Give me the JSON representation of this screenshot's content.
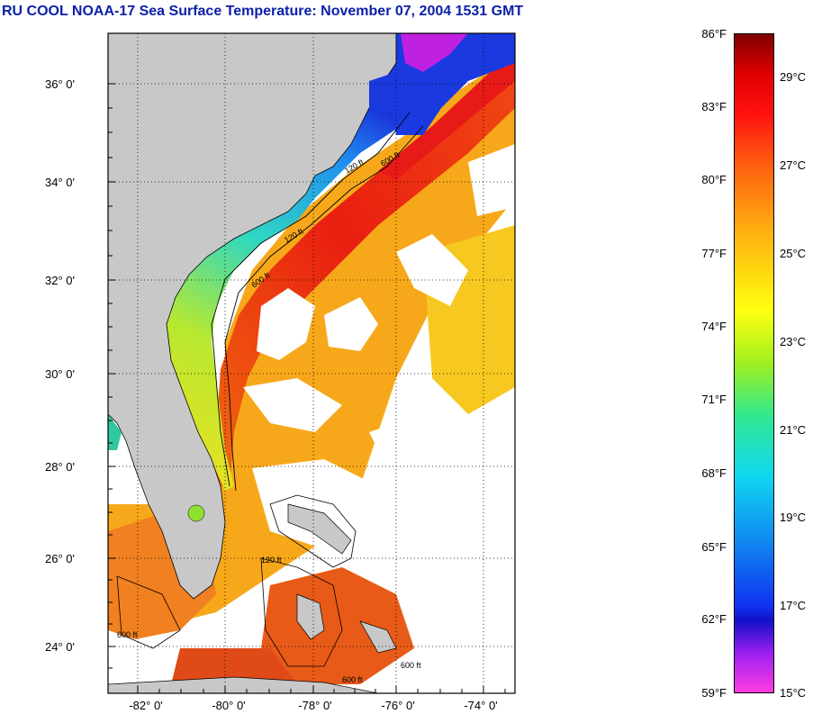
{
  "title": "RU COOL  NOAA-17  Sea Surface Temperature:  November 07, 2004 1531 GMT",
  "map": {
    "latitude_labels": [
      "36° 0'",
      "34° 0'",
      "32° 0'",
      "30° 0'",
      "28° 0'",
      "26° 0'",
      "24° 0'"
    ],
    "longitude_labels": [
      "-82° 0'",
      "-80° 0'",
      "-78° 0'",
      "-76° 0'",
      "-74° 0'"
    ],
    "contour_labels": [
      "120 ft",
      "600 ft"
    ],
    "colors": {
      "land": "#c8c8c8",
      "cloud": "#ffffff",
      "gulfstream": "#ee2a14",
      "shelf": "#2ad6a0"
    }
  },
  "colorbar": {
    "fahrenheit_labels": [
      "86°F",
      "83°F",
      "80°F",
      "77°F",
      "74°F",
      "71°F",
      "68°F",
      "65°F",
      "62°F",
      "59°F"
    ],
    "celsius_labels": [
      "29°C",
      "27°C",
      "25°C",
      "23°C",
      "21°C",
      "19°C",
      "17°C",
      "15°C"
    ],
    "range_f": [
      59,
      86
    ],
    "range_c": [
      15,
      30
    ]
  }
}
